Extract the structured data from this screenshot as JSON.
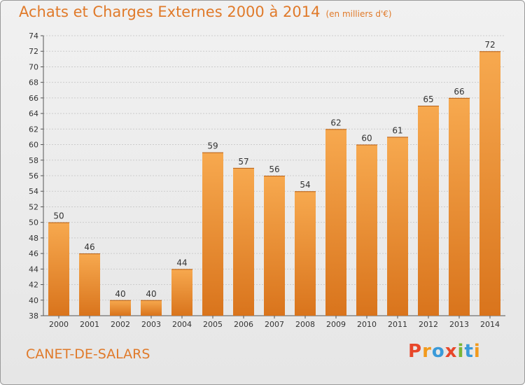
{
  "header": {
    "title": "Achats et Charges Externes 2000 à 2014",
    "unit": "(en milliers d'€)"
  },
  "footer": {
    "commune": "CANET-DE-SALARS",
    "logo": "Proxiti"
  },
  "colors": {
    "accent": "#e07a2a",
    "bar_top": "#f7a94f",
    "bar_bottom": "#d9741c",
    "logo_letters": [
      "#e8472a",
      "#f29a1c",
      "#3a9ad9",
      "#e8472a",
      "#7bb536",
      "#3a9ad9",
      "#f29a1c"
    ]
  },
  "chart_data": {
    "type": "bar",
    "title": "Achats et Charges Externes 2000 à 2014",
    "subtitle": "(en milliers d'€)",
    "xlabel": "",
    "ylabel": "",
    "categories": [
      "2000",
      "2001",
      "2002",
      "2003",
      "2004",
      "2005",
      "2006",
      "2007",
      "2008",
      "2009",
      "2010",
      "2011",
      "2012",
      "2013",
      "2014"
    ],
    "values": [
      50,
      46,
      40,
      40,
      44,
      59,
      57,
      56,
      54,
      62,
      60,
      61,
      65,
      66,
      72
    ],
    "ylim": [
      38,
      74
    ],
    "yticks": [
      38,
      40,
      42,
      44,
      46,
      48,
      50,
      52,
      54,
      56,
      58,
      60,
      62,
      64,
      66,
      68,
      70,
      72,
      74
    ],
    "grid": true
  }
}
